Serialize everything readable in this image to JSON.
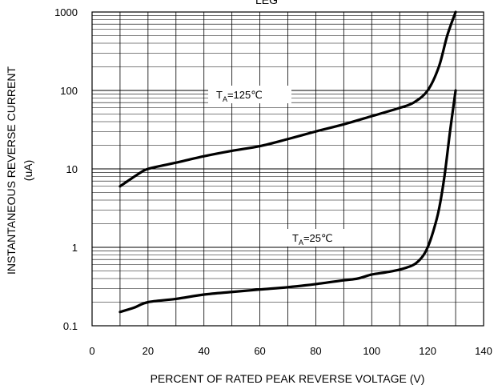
{
  "chart_data": {
    "type": "line",
    "title": "LEG",
    "xlabel": "PERCENT OF RATED PEAK REVERSE VOLTAGE (V)",
    "ylabel": "INSTANTANEOUS REVERSE CURRENT",
    "ylabel_unit": "(uA)",
    "xlim": [
      0,
      140
    ],
    "ylim": [
      0.1,
      1000
    ],
    "yscale": "log",
    "grid": true,
    "x_ticks": [
      0,
      20,
      40,
      60,
      80,
      100,
      120,
      140
    ],
    "x_tick_labels": [
      "0",
      "20",
      "40",
      "60",
      "80",
      "100",
      "120",
      "140"
    ],
    "y_ticks": [
      0.1,
      1,
      10,
      100,
      1000
    ],
    "y_tick_labels": [
      "0.1",
      "1",
      "10",
      "100",
      "1000"
    ],
    "series": [
      {
        "label_prefix": "T",
        "label_sub": "A",
        "label_suffix": "=125℃",
        "x": [
          10,
          14,
          18,
          20,
          25,
          30,
          40,
          50,
          60,
          70,
          80,
          90,
          100,
          110,
          115,
          120,
          124,
          127,
          130
        ],
        "y": [
          6,
          7.5,
          9.3,
          10,
          11,
          12,
          14.5,
          17,
          19.5,
          24,
          30,
          37,
          47,
          60,
          70,
          100,
          200,
          500,
          1000
        ]
      },
      {
        "label_prefix": "T",
        "label_sub": "A",
        "label_suffix": "=25℃",
        "x": [
          10,
          15,
          20,
          30,
          40,
          50,
          60,
          70,
          80,
          90,
          95,
          100,
          105,
          110,
          115,
          118,
          120,
          122,
          124,
          126,
          128,
          130
        ],
        "y": [
          0.15,
          0.17,
          0.2,
          0.22,
          0.25,
          0.27,
          0.29,
          0.31,
          0.34,
          0.38,
          0.4,
          0.45,
          0.48,
          0.52,
          0.6,
          0.75,
          1,
          1.6,
          3,
          8,
          30,
          100
        ]
      }
    ]
  }
}
